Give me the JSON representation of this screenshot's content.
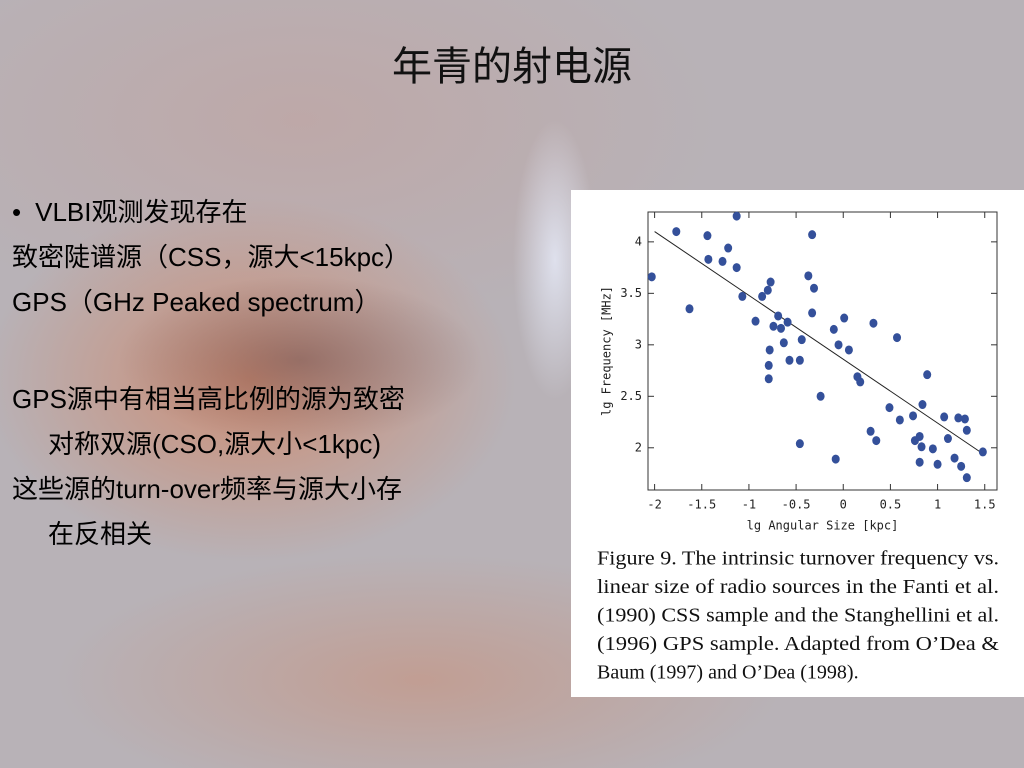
{
  "slide": {
    "title": "年青的射电源",
    "bullet": "•",
    "items": [
      {
        "lines": [
          "VLBI观测发现存在"
        ]
      },
      {
        "lines": [
          "致密陡谱源（CSS，源大<15kpc）"
        ]
      },
      {
        "lines": [
          "GPS（GHz Peaked spectrum）"
        ]
      },
      {
        "lines": [
          "GPS源中有相当高比例的源为致密",
          "对称双源(CSO,源大小<1kpc)"
        ]
      },
      {
        "lines": [
          "这些源的turn-over频率与源大小存",
          "在反相关"
        ]
      }
    ]
  },
  "chart_data": {
    "type": "scatter",
    "xlabel": "lg Angular Size [kpc]",
    "ylabel": "lg Frequency [MHz]",
    "x": [
      -2.03,
      -1.77,
      -1.63,
      -1.44,
      -1.43,
      -1.28,
      -1.22,
      -1.13,
      -1.13,
      -1.07,
      -0.93,
      -0.86,
      -0.8,
      -0.77,
      -0.74,
      -0.78,
      -0.79,
      -0.79,
      -0.69,
      -0.66,
      -0.63,
      -0.59,
      -0.57,
      -0.46,
      -0.44,
      -0.37,
      -0.33,
      -0.31,
      -0.33,
      -0.24,
      -0.46,
      -0.1,
      -0.05,
      0.01,
      0.06,
      0.15,
      0.18,
      -0.08,
      0.32,
      0.29,
      0.35,
      0.49,
      0.57,
      0.6,
      0.74,
      0.76,
      0.81,
      0.83,
      0.84,
      0.81,
      0.89,
      0.95,
      1.0,
      1.07,
      1.11,
      1.18,
      1.22,
      1.25,
      1.29,
      1.31,
      1.31,
      1.48
    ],
    "values": [
      3.66,
      4.1,
      3.35,
      4.06,
      3.83,
      3.81,
      3.94,
      4.25,
      3.75,
      3.47,
      3.23,
      3.47,
      3.53,
      3.61,
      3.18,
      2.95,
      2.8,
      2.67,
      3.28,
      3.16,
      3.02,
      3.22,
      2.85,
      2.85,
      3.05,
      3.67,
      4.07,
      3.55,
      3.31,
      2.5,
      2.04,
      3.15,
      3.0,
      3.26,
      2.95,
      2.69,
      2.64,
      1.89,
      3.21,
      2.16,
      2.07,
      2.39,
      3.07,
      2.27,
      2.31,
      2.07,
      2.11,
      2.01,
      2.42,
      1.86,
      2.71,
      1.99,
      1.84,
      2.3,
      2.09,
      1.9,
      2.29,
      1.82,
      2.28,
      2.17,
      1.71,
      1.96
    ],
    "color": "#34509a",
    "fit_line": {
      "x": [
        -2,
        1.5
      ],
      "y": [
        4.1,
        1.93
      ]
    },
    "xlim": [
      -2.07,
      1.63
    ],
    "ylim": [
      1.59,
      4.29
    ],
    "xticks": [
      -2,
      -1.5,
      -1,
      -0.5,
      0,
      0.5,
      1,
      1.5
    ],
    "yticks": [
      2,
      2.5,
      3,
      3.5,
      4
    ],
    "caption": [
      "Figure 9.   The intrinsic turnover frequency vs.",
      "linear size of radio sources in the Fanti et al.",
      "(1990) CSS sample and the Stanghellini et al.",
      "(1996) GPS sample.  Adapted from O’Dea &",
      "Baum (1997) and O’Dea (1998)."
    ]
  }
}
